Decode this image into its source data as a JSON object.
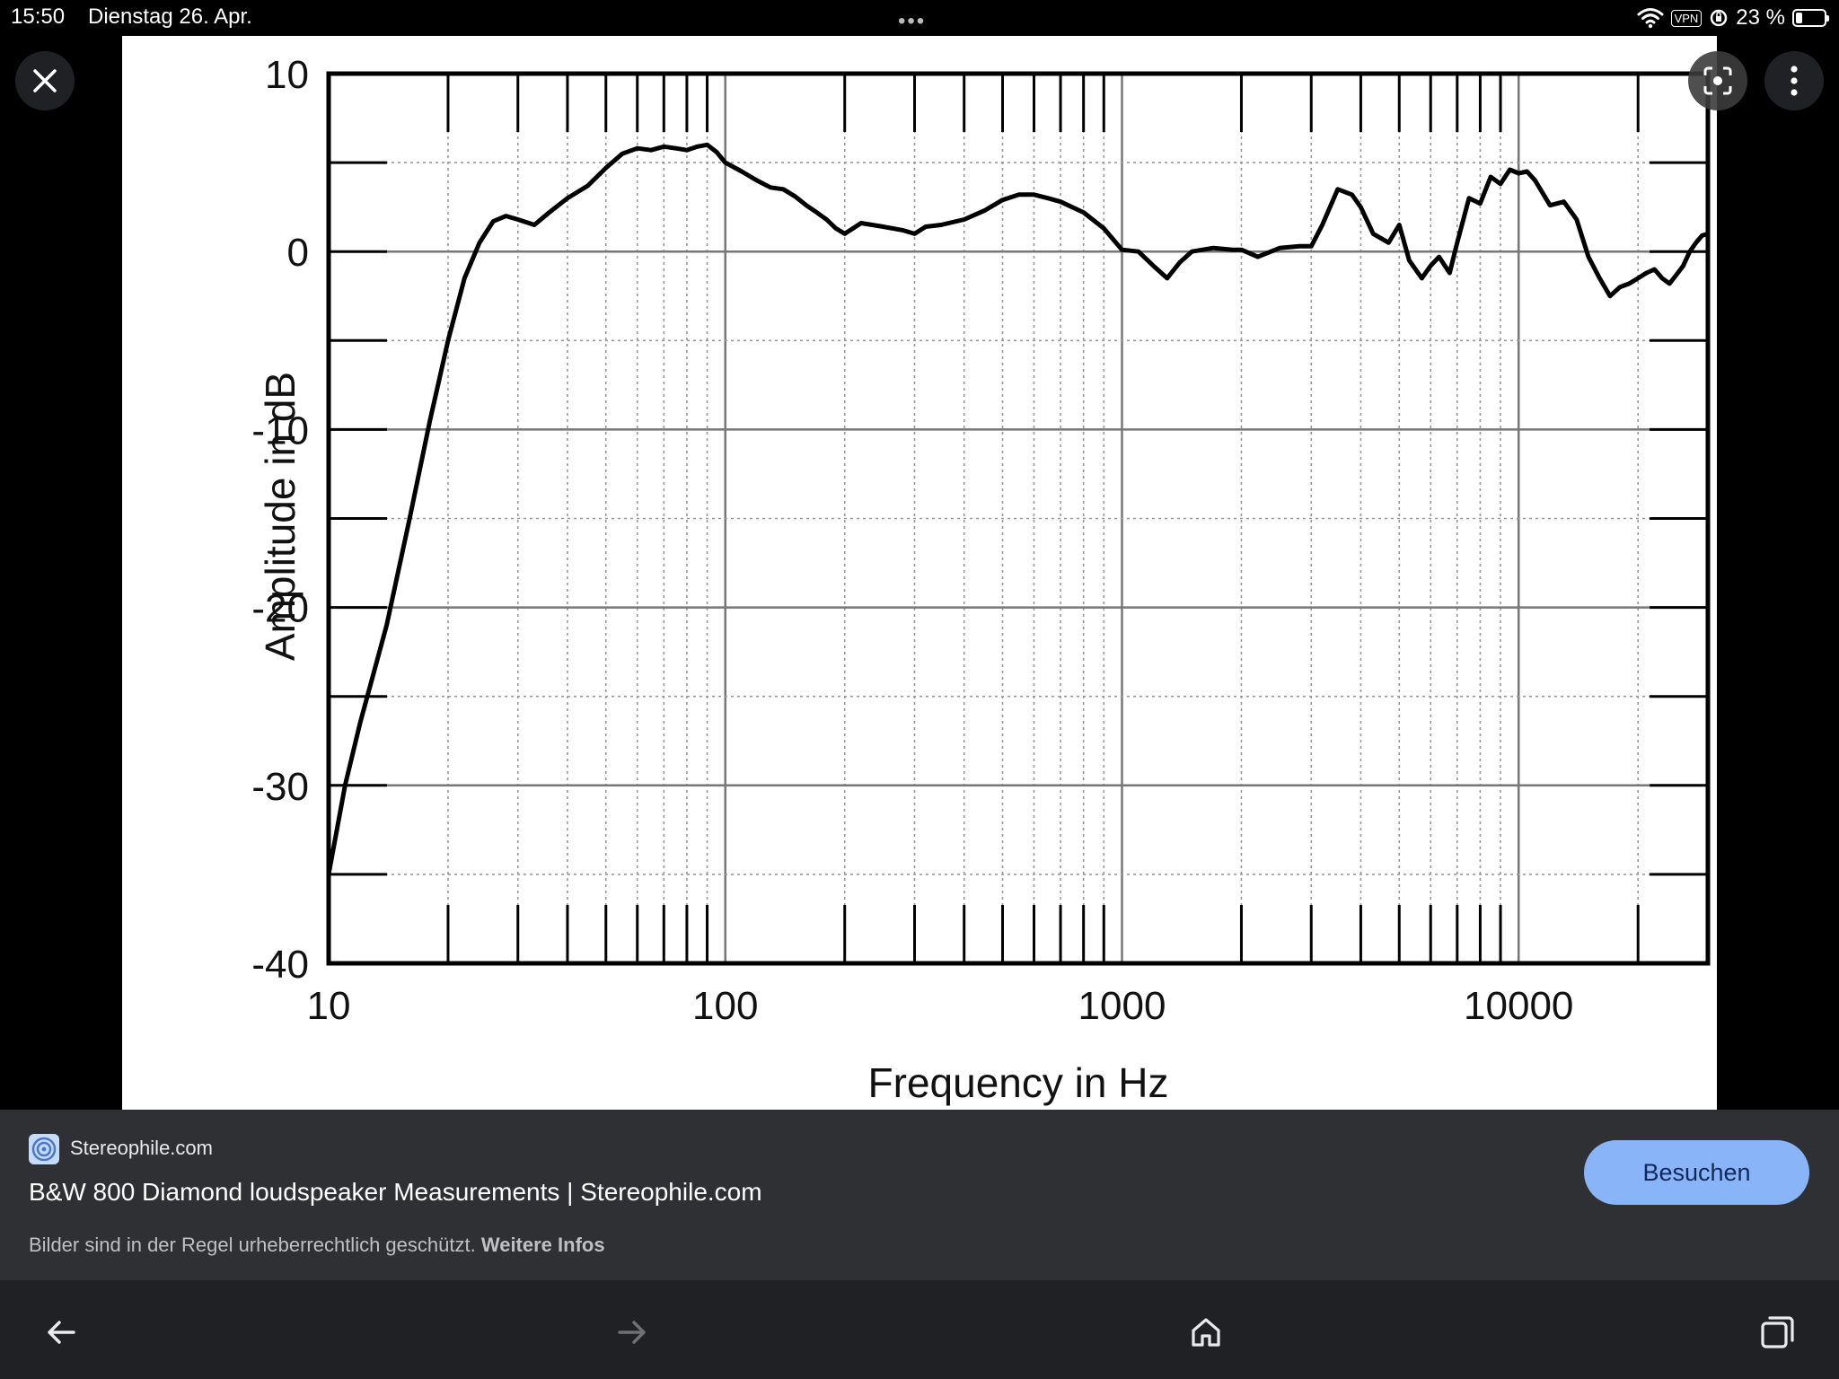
{
  "status_bar": {
    "time": "15:50",
    "date": "Dienstag 26. Apr.",
    "dots": "•••",
    "vpn": "VPN",
    "battery_percent": "23 %",
    "battery_level": 0.23
  },
  "chart_data": {
    "type": "line",
    "xlabel": "Frequency in Hz",
    "ylabel": "Amplitude in dB",
    "x_scale": "log",
    "xlim": [
      10,
      30000
    ],
    "ylim": [
      -40,
      10
    ],
    "x_ticks": [
      "10",
      "100",
      "1000",
      "10000"
    ],
    "y_ticks": [
      "10",
      "0",
      "-10",
      "-20",
      "-30",
      "-40"
    ],
    "grid": true,
    "series": [
      {
        "x": [
          10,
          11,
          12,
          14,
          16,
          18,
          20,
          22,
          24,
          26,
          28,
          30,
          33,
          36,
          40,
          45,
          50,
          55,
          60,
          65,
          70,
          75,
          80,
          85,
          90,
          95,
          100,
          110,
          120,
          130,
          140,
          150,
          160,
          170,
          180,
          190,
          200,
          220,
          250,
          280,
          300,
          320,
          350,
          400,
          450,
          500,
          550,
          600,
          650,
          700,
          800,
          900,
          1000,
          1100,
          1200,
          1300,
          1400,
          1500,
          1700,
          1900,
          2000,
          2200,
          2500,
          2800,
          3000,
          3200,
          3500,
          3800,
          4000,
          4300,
          4700,
          5000,
          5300,
          5700,
          6000,
          6300,
          6700,
          7000,
          7500,
          8000,
          8500,
          9000,
          9500,
          10000,
          10500,
          11000,
          12000,
          13000,
          14000,
          15000,
          16000,
          17000,
          18000,
          19000,
          20000,
          21000,
          22000,
          23000,
          24000,
          25000,
          26000,
          27000,
          28000,
          29000,
          30000
        ],
        "y": [
          -35,
          -30,
          -26.5,
          -21,
          -15,
          -9.5,
          -5,
          -1.5,
          0.5,
          1.7,
          2,
          1.8,
          1.5,
          2.2,
          3,
          3.7,
          4.7,
          5.5,
          5.8,
          5.7,
          5.9,
          5.8,
          5.7,
          5.9,
          6,
          5.6,
          5,
          4.5,
          4,
          3.6,
          3.5,
          3.1,
          2.6,
          2.2,
          1.8,
          1.3,
          1,
          1.6,
          1.4,
          1.2,
          1,
          1.4,
          1.5,
          1.8,
          2.3,
          2.9,
          3.2,
          3.2,
          3.0,
          2.8,
          2.2,
          1.3,
          0.1,
          0,
          -0.8,
          -1.5,
          -0.6,
          0,
          0.2,
          0.1,
          0.1,
          -0.3,
          0.2,
          0.3,
          0.3,
          1.5,
          3.5,
          3.2,
          2.5,
          1,
          0.5,
          1.5,
          -0.5,
          -1.5,
          -0.8,
          -0.3,
          -1.2,
          0.5,
          3,
          2.7,
          4.2,
          3.8,
          4.6,
          4.4,
          4.5,
          4,
          2.6,
          2.8,
          1.8,
          -0.3,
          -1.5,
          -2.5,
          -2,
          -1.8,
          -1.5,
          -1.2,
          -1,
          -1.5,
          -1.8,
          -1.3,
          -0.8,
          0,
          0.5,
          0.9,
          1
        ]
      }
    ]
  },
  "info": {
    "site_name": "Stereophile.com",
    "page_title": "B&W 800 Diamond loudspeaker Measurements | Stereophile.com",
    "copyright_note": "Bilder sind in der Regel urheberrechtlich geschützt.",
    "more_info_link": "Weitere Infos",
    "visit_button": "Besuchen"
  },
  "icons": {
    "close": "close-icon",
    "lens": "lens-icon",
    "more": "more-vert-icon",
    "back": "arrow-back-icon",
    "forward": "arrow-forward-icon",
    "home": "home-icon",
    "tabs": "tabs-icon",
    "wifi": "wifi-icon",
    "battery": "battery-icon"
  }
}
